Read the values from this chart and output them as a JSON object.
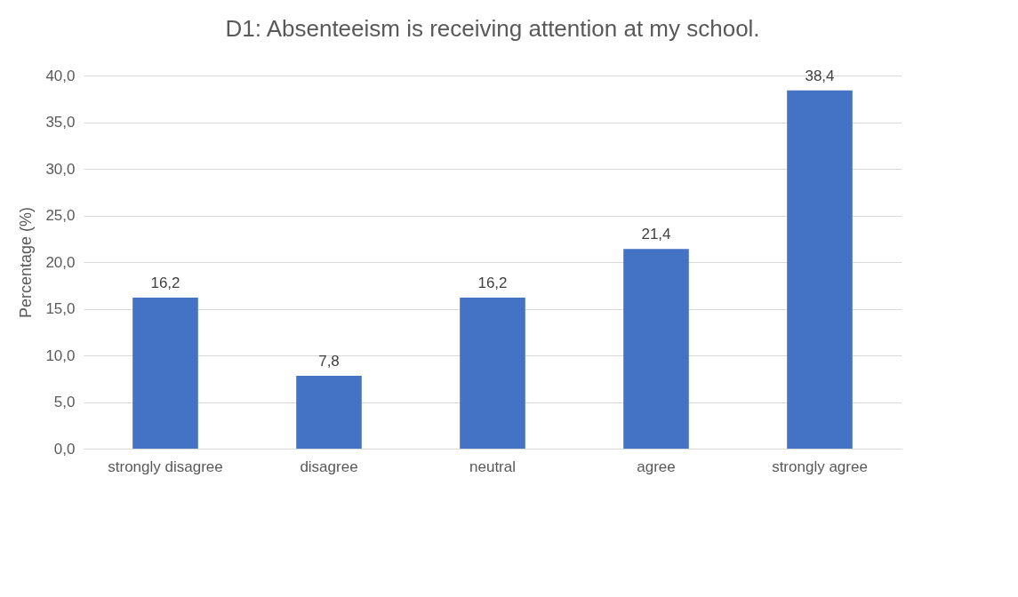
{
  "chart_data": {
    "type": "bar",
    "title": "D1: Absenteeism is receiving attention at my school.",
    "ylabel": "Percentage (%)",
    "categories": [
      "strongly disagree",
      "disagree",
      "neutral",
      "agree",
      "strongly agree"
    ],
    "values": [
      16.2,
      7.8,
      16.2,
      21.4,
      38.4
    ],
    "value_labels": [
      "16,2",
      "7,8",
      "16,2",
      "21,4",
      "38,4"
    ],
    "color": "#4472c4",
    "ylim": [
      0,
      40
    ],
    "yticks": [
      {
        "value": 0,
        "label": "0,0"
      },
      {
        "value": 5,
        "label": "5,0"
      },
      {
        "value": 10,
        "label": "10,0"
      },
      {
        "value": 15,
        "label": "15,0"
      },
      {
        "value": 20,
        "label": "20,0"
      },
      {
        "value": 25,
        "label": "25,0"
      },
      {
        "value": 30,
        "label": "30,0"
      },
      {
        "value": 35,
        "label": "35,0"
      },
      {
        "value": 40,
        "label": "40,0"
      }
    ],
    "grid": "y"
  }
}
